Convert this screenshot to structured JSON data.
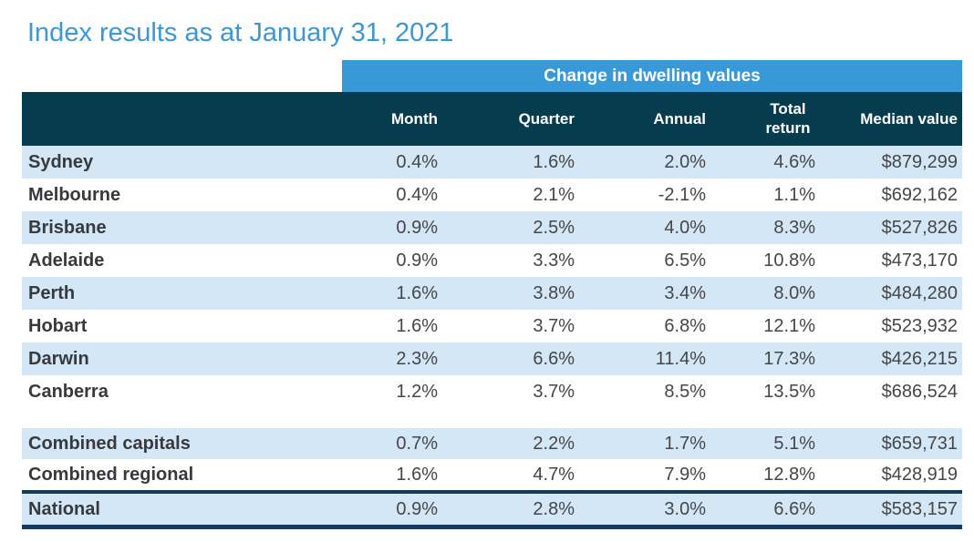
{
  "title": "Index results as at January 31, 2021",
  "band": {
    "label": "Change in dwelling values"
  },
  "chart_data": {
    "type": "table",
    "title": "Index results as at January 31, 2021",
    "group_header": "Change in dwelling values",
    "columns": [
      "Month",
      "Quarter",
      "Annual",
      "Total return",
      "Median value"
    ],
    "rows": [
      {
        "label": "Sydney",
        "values": [
          "0.4%",
          "1.6%",
          "2.0%",
          "4.6%",
          "$879,299"
        ]
      },
      {
        "label": "Melbourne",
        "values": [
          "0.4%",
          "2.1%",
          "-2.1%",
          "1.1%",
          "$692,162"
        ]
      },
      {
        "label": "Brisbane",
        "values": [
          "0.9%",
          "2.5%",
          "4.0%",
          "8.3%",
          "$527,826"
        ]
      },
      {
        "label": "Adelaide",
        "values": [
          "0.9%",
          "3.3%",
          "6.5%",
          "10.8%",
          "$473,170"
        ]
      },
      {
        "label": "Perth",
        "values": [
          "1.6%",
          "3.8%",
          "3.4%",
          "8.0%",
          "$484,280"
        ]
      },
      {
        "label": "Hobart",
        "values": [
          "1.6%",
          "3.7%",
          "6.8%",
          "12.1%",
          "$523,932"
        ]
      },
      {
        "label": "Darwin",
        "values": [
          "2.3%",
          "6.6%",
          "11.4%",
          "17.3%",
          "$426,215"
        ]
      },
      {
        "label": "Canberra",
        "values": [
          "1.2%",
          "3.7%",
          "8.5%",
          "13.5%",
          "$686,524"
        ]
      }
    ],
    "summary_rows": [
      {
        "label": "Combined capitals",
        "values": [
          "0.7%",
          "2.2%",
          "1.7%",
          "5.1%",
          "$659,731"
        ]
      },
      {
        "label": "Combined regional",
        "values": [
          "1.6%",
          "4.7%",
          "7.9%",
          "12.8%",
          "$428,919"
        ]
      }
    ],
    "national_row": {
      "label": "National",
      "values": [
        "0.9%",
        "2.8%",
        "3.0%",
        "6.6%",
        "$583,157"
      ]
    }
  },
  "colors": {
    "title_blue": "#3b98d5",
    "band_blue": "#3999d6",
    "header_teal": "#073c4f",
    "row_blue": "#d3e7f6",
    "divider_navy": "#17395c",
    "row_label": "#38393c",
    "value_text": "#45464a",
    "header_text": "#ffffff"
  }
}
